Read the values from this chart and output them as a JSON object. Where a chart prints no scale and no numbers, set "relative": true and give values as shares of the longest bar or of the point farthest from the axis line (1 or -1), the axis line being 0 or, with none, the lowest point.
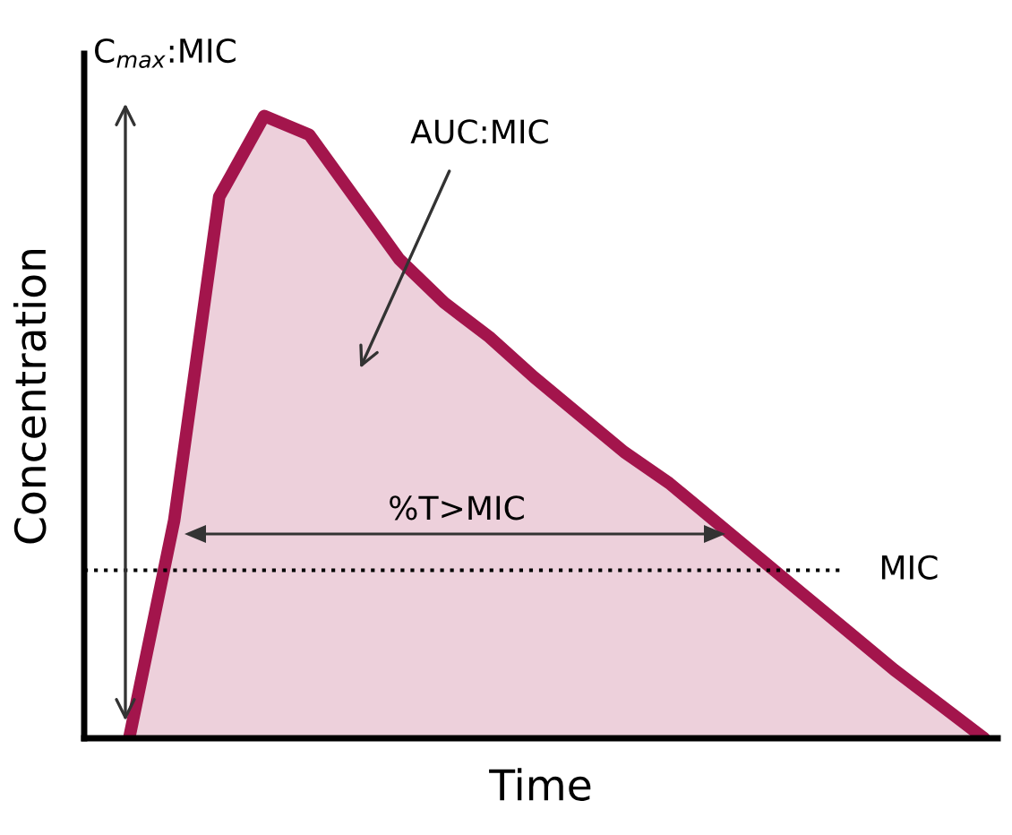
{
  "chart_data": {
    "type": "area",
    "relative": true,
    "xlabel": "Time",
    "ylabel": "Concentration",
    "categories": [
      null,
      null,
      null,
      null,
      null,
      null,
      null,
      null,
      null,
      null,
      null,
      null,
      null,
      null,
      null,
      null,
      null,
      null,
      null,
      null,
      null
    ],
    "series": [
      {
        "color": "#a3154c",
        "values": [
          null,
          0,
          0.35,
          0.87,
          1,
          0.97,
          0.87,
          0.77,
          0.7,
          0.645,
          0.58,
          0.52,
          0.46,
          0.41,
          0.35,
          0.29,
          0.23,
          0.17,
          0.11,
          0.055,
          0
        ]
      }
    ],
    "ref_lines": [
      {
        "axis": "y",
        "value": 0.27,
        "label": "MIC",
        "line_style": "dotted",
        "color": "#000000"
      }
    ],
    "annotations": [
      "C$_{max}$:MIC",
      "AUC:MIC",
      "%T>MIC"
    ],
    "legend": false
  }
}
